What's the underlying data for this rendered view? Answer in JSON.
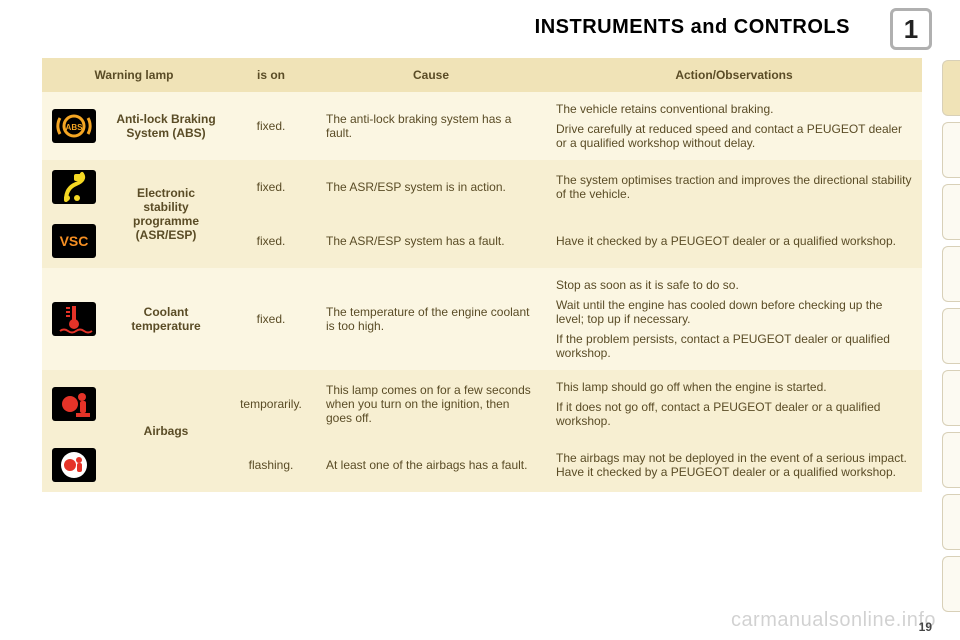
{
  "title": "INSTRUMENTS and CONTROLS",
  "section_number": "1",
  "page_number": "19",
  "watermark": "carmanualsonline.info",
  "columns": {
    "lamp": "Warning lamp",
    "ison": "is on",
    "cause": "Cause",
    "action": "Action/Observations"
  },
  "icon_colors": {
    "abs": "#f5a623",
    "esp_action": "#f5d823",
    "vsc": "#f58f23",
    "coolant": "#e53328",
    "airbag_temp": "#e53328",
    "airbag_flash": "#e53328",
    "airbag_flash_bg": "#ffffff"
  },
  "rows": [
    {
      "icon": "abs",
      "lamp": "Anti-lock Braking System (ABS)",
      "ison": "fixed.",
      "cause": "The anti-lock braking system has a fault.",
      "action": [
        "The vehicle retains conventional braking.",
        "Drive carefully at reduced speed and contact a PEUGEOT dealer or a qualified workshop without delay."
      ],
      "alt": false,
      "lamp_rowspan": 1
    },
    {
      "icon": "esp_action",
      "lamp": "Electronic stability programme (ASR/ESP)",
      "lamp_rowspan": 2,
      "ison": "fixed.",
      "cause": "The ASR/ESP system is in action.",
      "action": [
        "The system optimises traction and improves the directional stability of the vehicle."
      ],
      "alt": true
    },
    {
      "icon": "vsc",
      "ison": "fixed.",
      "cause": "The ASR/ESP system has a fault.",
      "action": [
        "Have it checked by a PEUGEOT dealer or a qualified workshop."
      ],
      "alt": true
    },
    {
      "icon": "coolant",
      "lamp": "Coolant temperature",
      "lamp_rowspan": 1,
      "ison": "fixed.",
      "cause": "The temperature of the engine coolant is too high.",
      "action": [
        "Stop as soon as it is safe to do so.",
        "Wait until the engine has cooled down before checking up the level; top up if necessary.",
        "If the problem persists, contact a PEUGEOT dealer or qualified workshop."
      ],
      "alt": false
    },
    {
      "icon": "airbag_temp",
      "lamp": "Airbags",
      "lamp_rowspan": 2,
      "ison": "temporarily.",
      "cause": "This lamp comes on for a few seconds when you turn on the ignition, then goes off.",
      "action": [
        "This lamp should go off when the engine is started.",
        "If it does not go off, contact a PEUGEOT dealer or a qualified workshop."
      ],
      "alt": true
    },
    {
      "icon": "airbag_flash",
      "ison": "flashing.",
      "cause": "At least one of the airbags has a fault.",
      "action": [
        "The airbags may not be deployed in the event of a serious impact. Have it checked by a PEUGEOT dealer or a qualified workshop."
      ],
      "alt": true
    }
  ],
  "right_tab_count": 9,
  "active_tab_index": 0,
  "colors": {
    "header_bg": "#f0e3b7",
    "row_bg": "#fbf6e2",
    "row_alt_bg": "#f7efd2",
    "text": "#5a4c26"
  }
}
